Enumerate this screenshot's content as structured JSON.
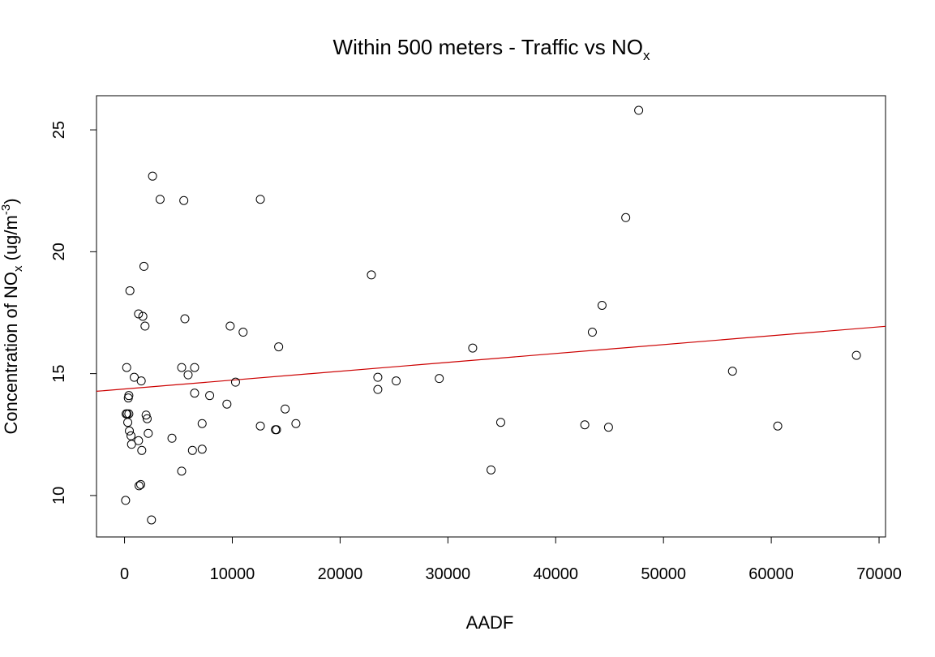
{
  "chart_data": {
    "type": "scatter",
    "title": {
      "main": "Within 500 meters - Traffic vs NO",
      "sub": "x"
    },
    "xlabel": "AADF",
    "ylabel": {
      "before": "Concentration of NO",
      "sub": "x",
      "middle": " (ug/m",
      "sup": "-3",
      "after": ")"
    },
    "xlim": [
      -2600,
      70600
    ],
    "ylim": [
      8.3,
      26.4
    ],
    "xticks": [
      0,
      10000,
      20000,
      30000,
      40000,
      50000,
      60000,
      70000
    ],
    "xtick_labels": [
      "0",
      "10000",
      "20000",
      "30000",
      "40000",
      "50000",
      "60000",
      "70000"
    ],
    "yticks": [
      10,
      15,
      20,
      25
    ],
    "ytick_labels": [
      "10",
      "15",
      "20",
      "25"
    ],
    "grid": false,
    "legend": "none",
    "colors": {
      "points": "#000000",
      "trend": "#cc0000",
      "frame": "#000000"
    },
    "trend_line": {
      "intercept": 14.37,
      "slope": 3.64e-05
    },
    "points": [
      [
        100,
        9.8
      ],
      [
        150,
        13.35
      ],
      [
        200,
        15.25
      ],
      [
        250,
        13.35
      ],
      [
        300,
        13.0
      ],
      [
        350,
        14.0
      ],
      [
        400,
        14.1
      ],
      [
        400,
        13.35
      ],
      [
        450,
        12.65
      ],
      [
        500,
        18.4
      ],
      [
        600,
        12.45
      ],
      [
        650,
        12.1
      ],
      [
        900,
        14.85
      ],
      [
        1300,
        17.45
      ],
      [
        1300,
        12.25
      ],
      [
        1350,
        10.4
      ],
      [
        1500,
        10.45
      ],
      [
        1550,
        14.7
      ],
      [
        1600,
        11.85
      ],
      [
        1700,
        17.35
      ],
      [
        1800,
        19.4
      ],
      [
        1900,
        16.95
      ],
      [
        2000,
        13.3
      ],
      [
        2100,
        13.15
      ],
      [
        2200,
        12.55
      ],
      [
        2500,
        9.0
      ],
      [
        2600,
        23.1
      ],
      [
        3300,
        22.15
      ],
      [
        4400,
        12.35
      ],
      [
        5300,
        11.0
      ],
      [
        5300,
        15.25
      ],
      [
        5500,
        22.1
      ],
      [
        5600,
        17.25
      ],
      [
        5900,
        14.95
      ],
      [
        6300,
        11.85
      ],
      [
        6500,
        15.25
      ],
      [
        6500,
        14.2
      ],
      [
        7200,
        12.95
      ],
      [
        7200,
        11.9
      ],
      [
        7900,
        14.1
      ],
      [
        9500,
        13.75
      ],
      [
        9800,
        16.95
      ],
      [
        10300,
        14.65
      ],
      [
        11000,
        16.7
      ],
      [
        12600,
        22.15
      ],
      [
        12600,
        12.85
      ],
      [
        14000,
        12.7
      ],
      [
        14100,
        12.7
      ],
      [
        14300,
        16.1
      ],
      [
        14900,
        13.55
      ],
      [
        15900,
        12.95
      ],
      [
        22900,
        19.05
      ],
      [
        23500,
        14.85
      ],
      [
        23500,
        14.35
      ],
      [
        25200,
        14.7
      ],
      [
        29200,
        14.8
      ],
      [
        32300,
        16.05
      ],
      [
        34000,
        11.05
      ],
      [
        34900,
        13.0
      ],
      [
        42700,
        12.9
      ],
      [
        43400,
        16.7
      ],
      [
        44300,
        17.8
      ],
      [
        44900,
        12.8
      ],
      [
        46500,
        21.4
      ],
      [
        47700,
        25.8
      ],
      [
        56400,
        15.1
      ],
      [
        60600,
        12.85
      ],
      [
        67900,
        15.75
      ]
    ]
  }
}
